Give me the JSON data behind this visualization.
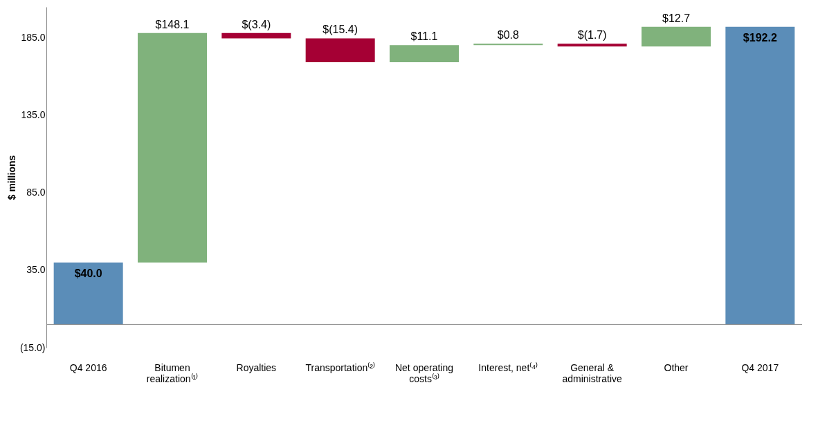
{
  "chart_data": {
    "type": "bar",
    "ylabel": "$ millions",
    "categories": [
      "Q4 2016",
      "Bitumen realization⁽¹⁾",
      "Royalties",
      "Transportation⁽²⁾",
      "Net operating costs⁽³⁾",
      "Interest, net⁽⁴⁾",
      "General & administrative",
      "Other",
      "Q4 2017"
    ],
    "values": [
      40.0,
      148.1,
      -3.4,
      -15.4,
      11.1,
      0.8,
      -1.7,
      12.7,
      192.2
    ],
    "base": [
      0,
      40.0,
      188.1,
      184.7,
      169.3,
      180.4,
      181.2,
      179.5,
      0
    ],
    "colors": [
      "#5b8db8",
      "#80b27c",
      "#a50034",
      "#a50034",
      "#80b27c",
      "#80b27c",
      "#a50034",
      "#80b27c",
      "#5b8db8"
    ],
    "value_labels": [
      "$40.0",
      "$148.1",
      "$(3.4)",
      "$(15.4)",
      "$11.1",
      "$0.8",
      "$(1.7)",
      "$12.7",
      "$192.2"
    ],
    "ylim": [
      -15,
      205
    ],
    "yticks": [
      {
        "value": -15,
        "label": "(15.0)"
      },
      {
        "value": 35,
        "label": "35.0"
      },
      {
        "value": 85,
        "label": "85.0"
      },
      {
        "value": 135,
        "label": "135.0"
      },
      {
        "value": 185,
        "label": "185.0"
      }
    ],
    "ref_lines": [
      {
        "axis": "y",
        "value": 0,
        "label": null,
        "color": "#888888"
      }
    ],
    "grid": false
  }
}
